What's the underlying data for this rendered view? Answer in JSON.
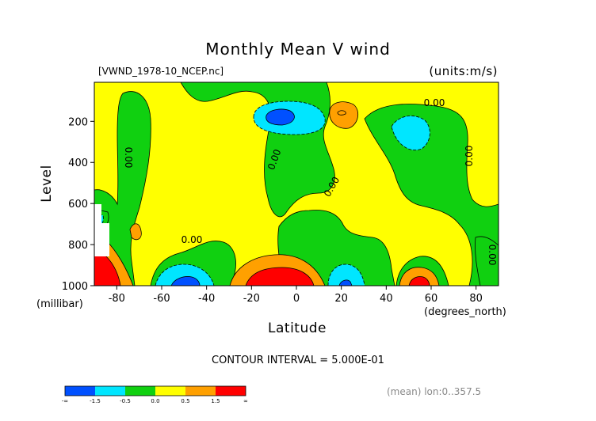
{
  "chart_data": {
    "type": "heatmap",
    "title": "Monthly Mean V wind",
    "file_label": "[VWND_1978-10_NCEP.nc]",
    "units_label": "(units:m/s)",
    "xlabel": "Latitude",
    "xunits": "(degrees_north)",
    "ylabel": "Level",
    "yunits": "(millibar)",
    "xlim": [
      -90,
      90
    ],
    "ylim": [
      1000,
      10
    ],
    "x_ticks": [
      "-80",
      "-60",
      "-40",
      "-20",
      "0",
      "20",
      "40",
      "60",
      "80"
    ],
    "y_ticks": [
      "200",
      "400",
      "600",
      "800",
      "1000"
    ],
    "contour_interval_label": "CONTOUR INTERVAL = 5.000E-01",
    "contour_labels": [
      "0.00",
      "0.00",
      "0.00",
      "0.00",
      "0.00",
      "0.00",
      "0.00"
    ],
    "extra_label": "(mean) lon:0..357.5",
    "colorbar": {
      "labels": [
        "-∞",
        "-1.5",
        "-0.5",
        "0.0",
        "0.5",
        "1.5",
        "∞"
      ],
      "colors": [
        "#0050ff",
        "#00e6ff",
        "#10d010",
        "#ffff00",
        "#ffa000",
        "#ff0000"
      ]
    }
  }
}
